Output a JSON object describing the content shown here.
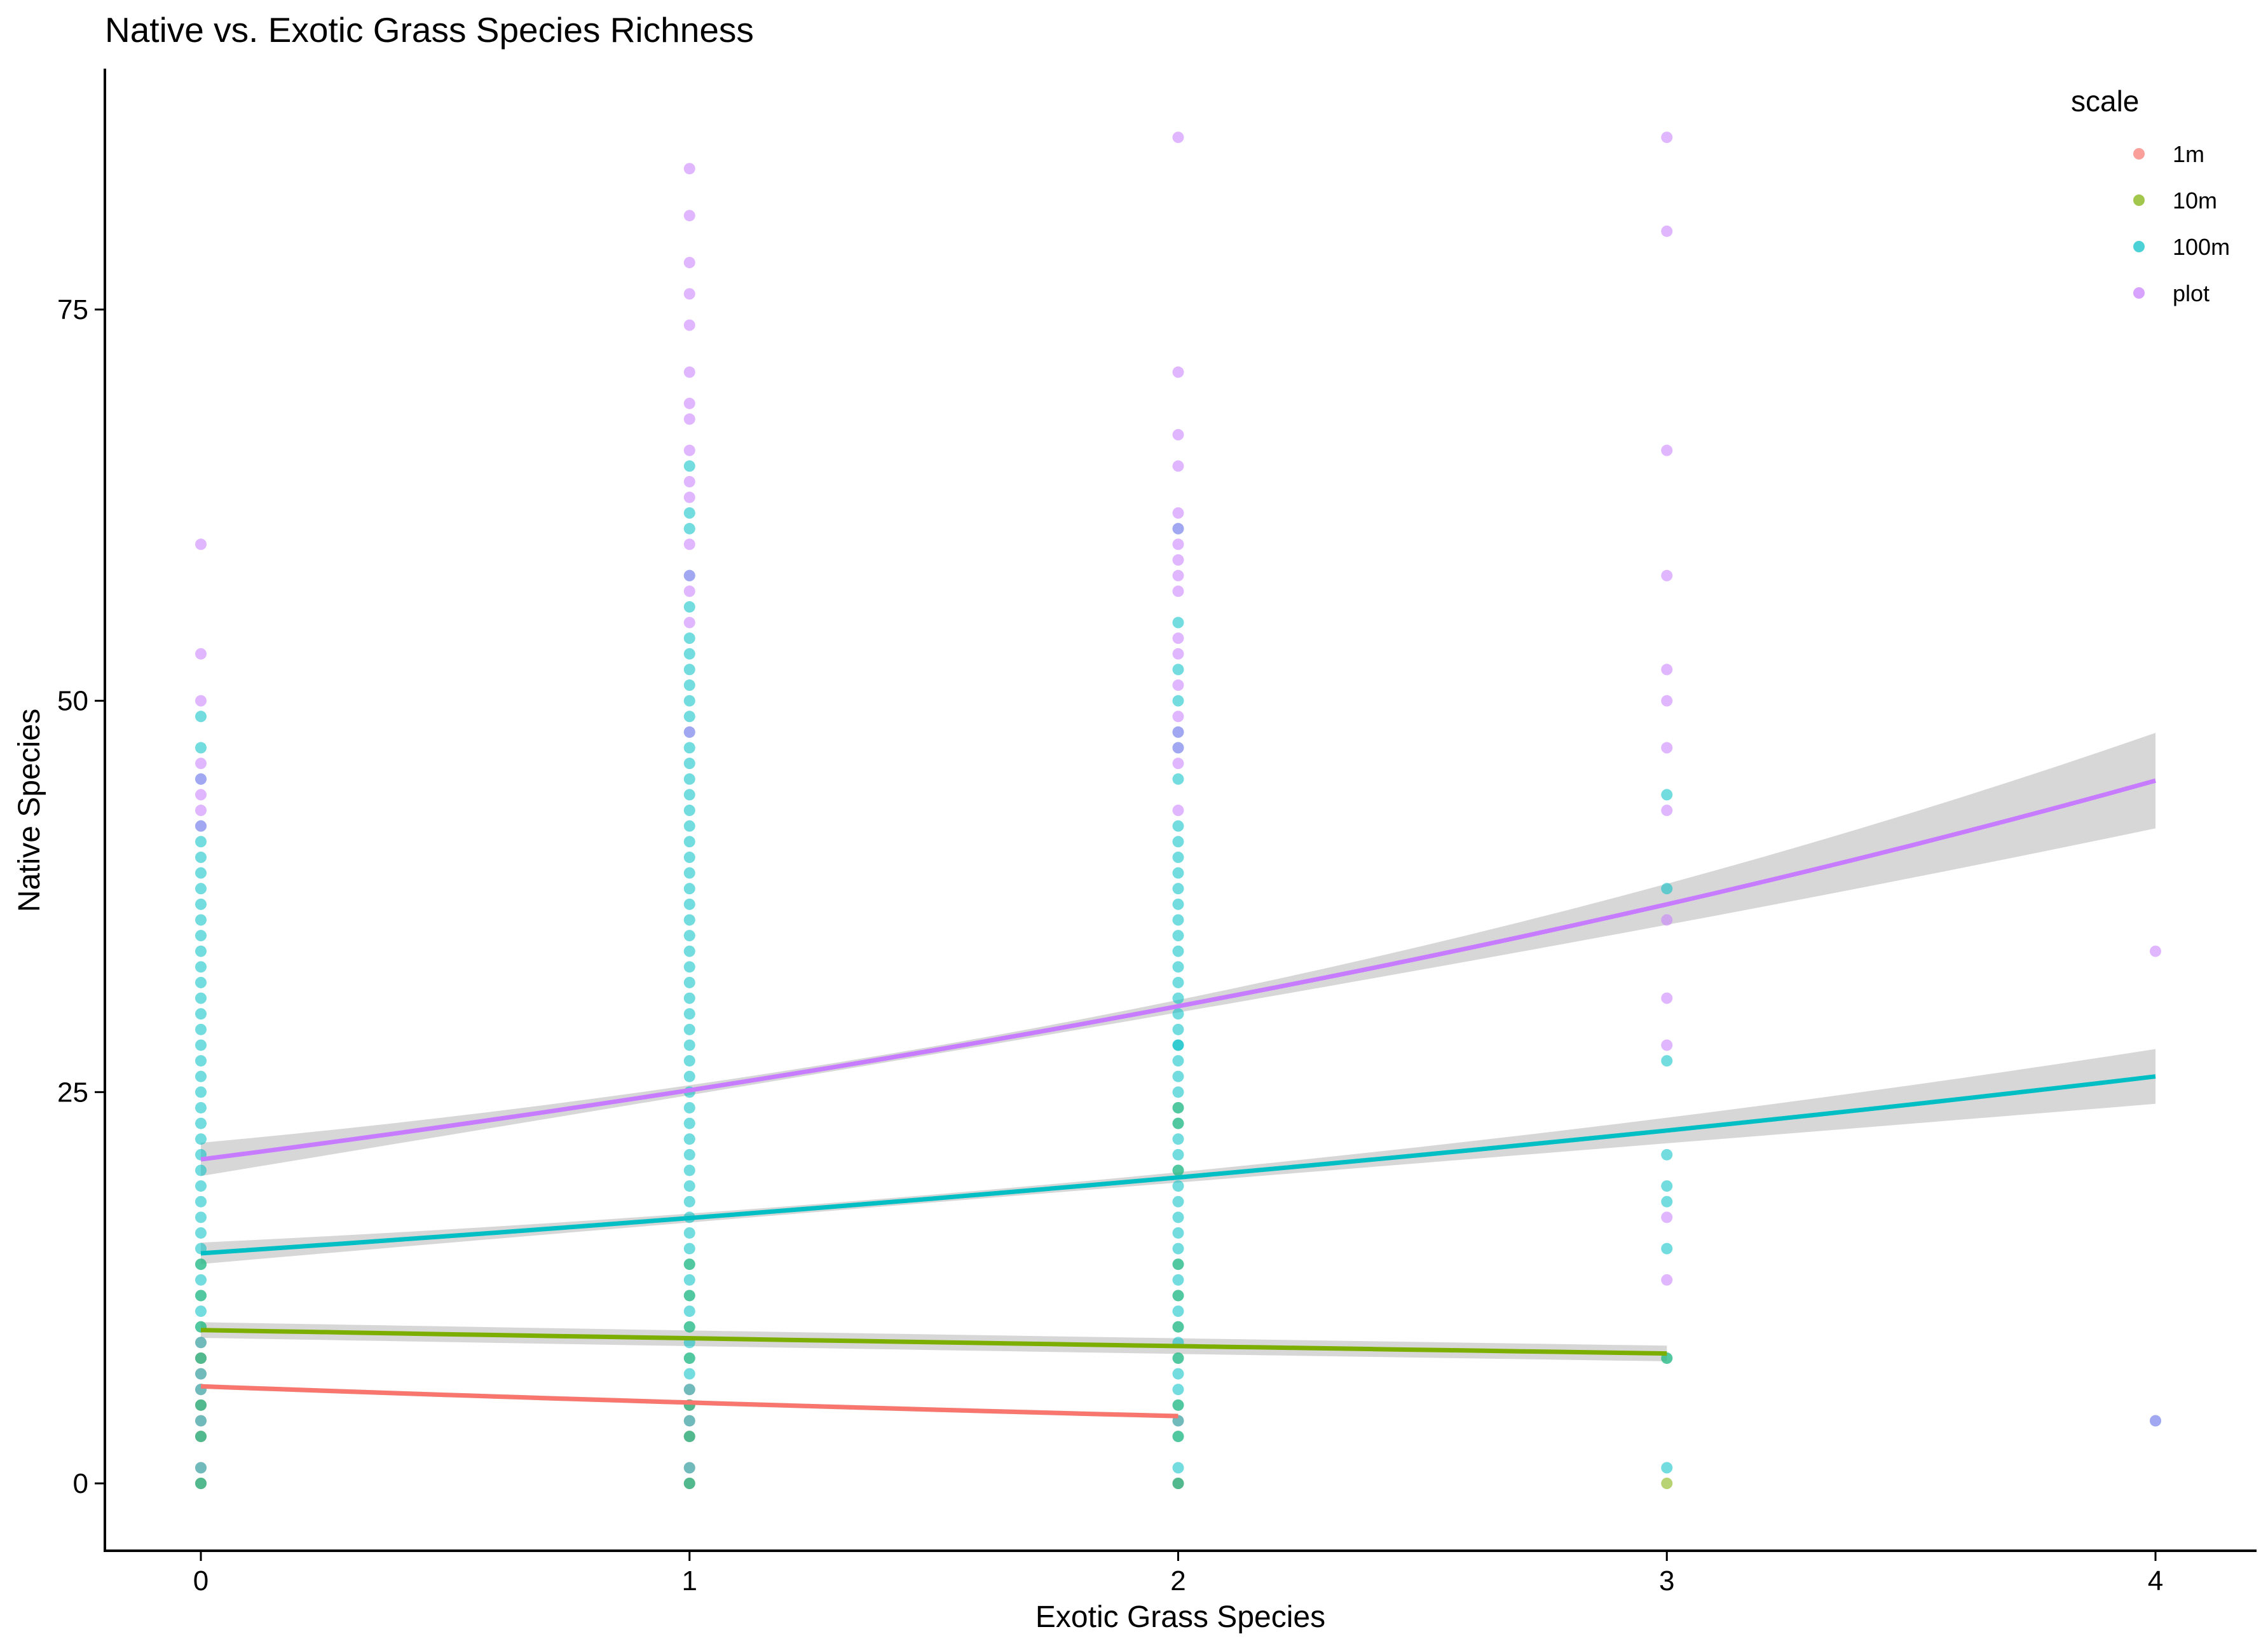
{
  "chart_data": {
    "type": "scatter",
    "title": "Native vs. Exotic Grass Species Richness",
    "xlabel": "Exotic Grass Species",
    "ylabel": "Native Species",
    "xlim": [
      -0.2,
      4.2
    ],
    "ylim": [
      -4.2,
      90.5
    ],
    "x_ticks": [
      0,
      1,
      2,
      3,
      4
    ],
    "y_ticks": [
      0,
      25,
      50,
      75
    ],
    "grid": false,
    "legend": {
      "title": "scale",
      "position": "top-right"
    },
    "series": [
      {
        "name": "1m",
        "color": "#F8766D",
        "points": [
          [
            0,
            0
          ],
          [
            1,
            0
          ],
          [
            2,
            0
          ],
          [
            0,
            1
          ],
          [
            1,
            1
          ],
          [
            0,
            3
          ],
          [
            1,
            3
          ],
          [
            0,
            4
          ],
          [
            1,
            4
          ],
          [
            2,
            4
          ],
          [
            0,
            5
          ],
          [
            1,
            5
          ],
          [
            0,
            6
          ],
          [
            1,
            6
          ],
          [
            0,
            7
          ],
          [
            0,
            8
          ],
          [
            0,
            9
          ]
        ],
        "fit": {
          "x": [
            0,
            2
          ],
          "y": [
            6.2,
            4.3
          ],
          "ci": 0.15
        }
      },
      {
        "name": "10m",
        "color": "#7CAE00",
        "points": [
          [
            0,
            0
          ],
          [
            1,
            0
          ],
          [
            2,
            0
          ],
          [
            3,
            0
          ],
          [
            0,
            3
          ],
          [
            1,
            3
          ],
          [
            2,
            3
          ],
          [
            0,
            5
          ],
          [
            1,
            5
          ],
          [
            2,
            5
          ],
          [
            0,
            8
          ],
          [
            1,
            8
          ],
          [
            2,
            8
          ],
          [
            0,
            10
          ],
          [
            1,
            10
          ],
          [
            2,
            10
          ],
          [
            0,
            12
          ],
          [
            1,
            12
          ],
          [
            2,
            12
          ],
          [
            0,
            14
          ],
          [
            1,
            14
          ],
          [
            2,
            14
          ],
          [
            2,
            20
          ],
          [
            2,
            23
          ],
          [
            2,
            24
          ],
          [
            3,
            8
          ]
        ],
        "fit": {
          "x": [
            0,
            3
          ],
          "y": [
            9.8,
            8.3
          ],
          "ci": 0.5
        }
      },
      {
        "name": "100m",
        "color": "#00BFC4",
        "dense_columns": [
          {
            "x": 0,
            "from": 3,
            "to": 39
          },
          {
            "x": 1,
            "from": 3,
            "to": 54
          },
          {
            "x": 2,
            "from": 3,
            "to": 41
          }
        ],
        "points": [
          [
            0,
            0
          ],
          [
            0,
            1
          ],
          [
            0,
            40
          ],
          [
            0,
            41
          ],
          [
            0,
            42
          ],
          [
            0,
            45
          ],
          [
            0,
            47
          ],
          [
            0,
            49
          ],
          [
            1,
            0
          ],
          [
            1,
            1
          ],
          [
            1,
            56
          ],
          [
            1,
            58
          ],
          [
            1,
            61
          ],
          [
            1,
            62
          ],
          [
            1,
            65
          ],
          [
            2,
            0
          ],
          [
            2,
            1
          ],
          [
            2,
            42
          ],
          [
            2,
            45
          ],
          [
            2,
            47
          ],
          [
            2,
            48
          ],
          [
            2,
            50
          ],
          [
            2,
            52
          ],
          [
            2,
            55
          ],
          [
            2,
            61
          ],
          [
            2,
            28
          ],
          [
            3,
            1
          ],
          [
            3,
            8
          ],
          [
            3,
            15
          ],
          [
            3,
            18
          ],
          [
            3,
            19
          ],
          [
            3,
            21
          ],
          [
            3,
            27
          ],
          [
            3,
            38
          ],
          [
            3,
            44
          ],
          [
            4,
            4
          ]
        ],
        "fit": {
          "x": [
            0,
            4
          ],
          "y": [
            14.7,
            26.0
          ],
          "ci_at_max": 1.5
        }
      },
      {
        "name": "plot",
        "color": "#C77CFF",
        "points": [
          [
            0,
            60
          ],
          [
            0,
            53
          ],
          [
            0,
            50
          ],
          [
            0,
            46
          ],
          [
            0,
            45
          ],
          [
            0,
            44
          ],
          [
            0,
            43
          ],
          [
            0,
            42
          ],
          [
            1,
            84
          ],
          [
            1,
            81
          ],
          [
            1,
            78
          ],
          [
            1,
            76
          ],
          [
            1,
            74
          ],
          [
            1,
            71
          ],
          [
            1,
            69
          ],
          [
            1,
            68
          ],
          [
            1,
            66
          ],
          [
            1,
            64
          ],
          [
            1,
            63
          ],
          [
            1,
            60
          ],
          [
            1,
            58
          ],
          [
            1,
            57
          ],
          [
            1,
            55
          ],
          [
            1,
            48
          ],
          [
            2,
            86
          ],
          [
            2,
            71
          ],
          [
            2,
            67
          ],
          [
            2,
            65
          ],
          [
            2,
            62
          ],
          [
            2,
            61
          ],
          [
            2,
            60
          ],
          [
            2,
            59
          ],
          [
            2,
            58
          ],
          [
            2,
            57
          ],
          [
            2,
            54
          ],
          [
            2,
            53
          ],
          [
            2,
            51
          ],
          [
            2,
            49
          ],
          [
            2,
            48
          ],
          [
            2,
            47
          ],
          [
            2,
            46
          ],
          [
            2,
            43
          ],
          [
            3,
            86
          ],
          [
            3,
            80
          ],
          [
            3,
            66
          ],
          [
            3,
            58
          ],
          [
            3,
            52
          ],
          [
            3,
            50
          ],
          [
            3,
            47
          ],
          [
            3,
            43
          ],
          [
            3,
            36
          ],
          [
            3,
            31
          ],
          [
            3,
            28
          ],
          [
            3,
            17
          ],
          [
            3,
            13
          ],
          [
            4,
            34
          ],
          [
            4,
            4
          ]
        ],
        "fit": {
          "x": [
            0,
            4
          ],
          "y": [
            20.7,
            44.9
          ],
          "ci_at_max": 2.8
        }
      }
    ]
  }
}
